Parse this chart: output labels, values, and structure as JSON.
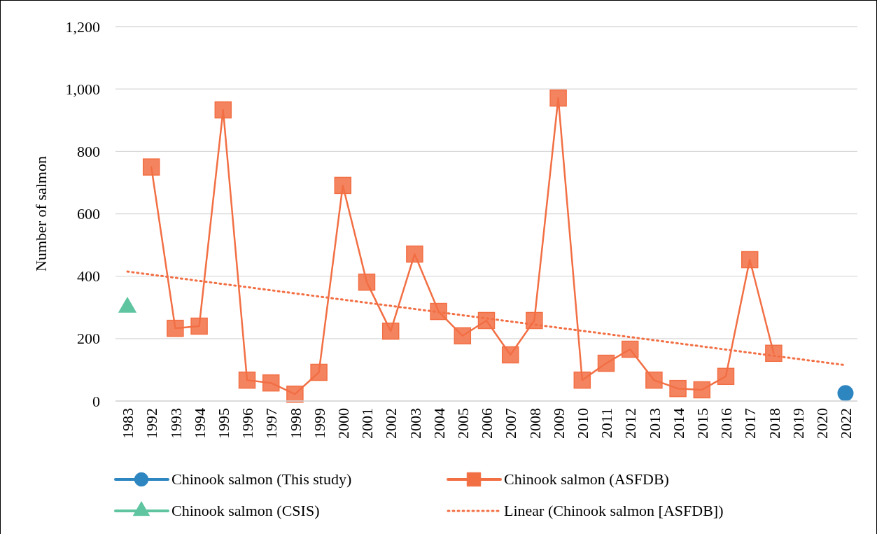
{
  "chart_data": {
    "type": "line",
    "ylabel": "Number of salmon",
    "categories": [
      "1983",
      "1992",
      "1993",
      "1994",
      "1995",
      "1996",
      "1997",
      "1998",
      "1999",
      "2000",
      "2001",
      "2002",
      "2003",
      "2004",
      "2005",
      "2006",
      "2007",
      "2008",
      "2009",
      "2010",
      "2011",
      "2012",
      "2013",
      "2014",
      "2015",
      "2016",
      "2017",
      "2018",
      "2019",
      "2020",
      "2022"
    ],
    "series": [
      {
        "name": "Chinook salmon (This study)",
        "color": "#2e86c1",
        "marker": "circle",
        "values": [
          null,
          null,
          null,
          null,
          null,
          null,
          null,
          null,
          null,
          null,
          null,
          null,
          null,
          null,
          null,
          null,
          null,
          null,
          null,
          null,
          null,
          null,
          null,
          null,
          null,
          null,
          null,
          null,
          null,
          null,
          25
        ]
      },
      {
        "name": "Chinook salmon (ASFDB)",
        "color": "#f26f44",
        "marker": "square",
        "values": [
          null,
          750,
          233,
          240,
          933,
          67,
          58,
          22,
          92,
          691,
          381,
          224,
          471,
          287,
          209,
          258,
          148,
          258,
          971,
          67,
          121,
          166,
          67,
          40,
          36,
          79,
          453,
          153,
          null,
          null,
          null
        ]
      },
      {
        "name": "Chinook salmon (CSIS)",
        "color": "#5fc4a0",
        "marker": "triangle",
        "values": [
          300,
          null,
          null,
          null,
          null,
          null,
          null,
          null,
          null,
          null,
          null,
          null,
          null,
          null,
          null,
          null,
          null,
          null,
          null,
          null,
          null,
          null,
          null,
          null,
          null,
          null,
          null,
          null,
          null,
          null,
          null
        ]
      },
      {
        "name": "Linear (Chinook salmon [ASFDB])",
        "color": "#f26f44",
        "marker": "none",
        "line_style": "dotted",
        "values": [
          415,
          405,
          395,
          385,
          375,
          365,
          355,
          345,
          335,
          325,
          315,
          305,
          295,
          285,
          275,
          265,
          255,
          245,
          235,
          225,
          215,
          205,
          195,
          185,
          175,
          165,
          155,
          145,
          135,
          125,
          115
        ]
      }
    ],
    "ylim": [
      0,
      1200
    ],
    "yticks": [
      0,
      200,
      400,
      600,
      800,
      {
        "value": 1000,
        "label": "1,000"
      },
      {
        "value": 1200,
        "label": "1,200"
      }
    ],
    "grid": "y",
    "legend": "bottom"
  }
}
